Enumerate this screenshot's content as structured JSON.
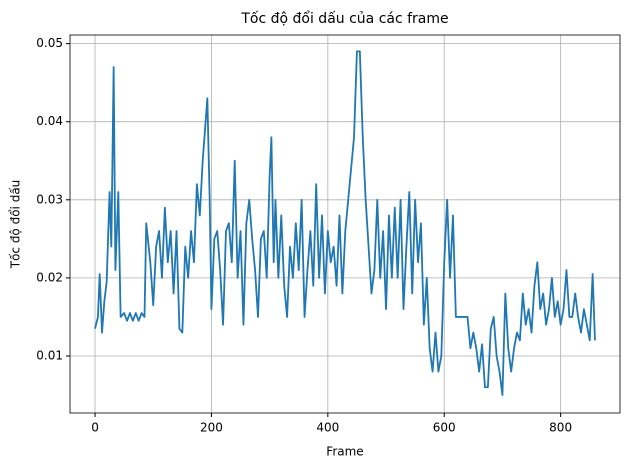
{
  "chart_data": {
    "type": "line",
    "title": "Tốc độ đổi dấu của các frame",
    "x_label": "Frame",
    "y_label": "Tốc độ đổi dấu",
    "x": [
      0,
      5,
      8,
      12,
      16,
      20,
      25,
      28,
      32,
      35,
      40,
      44,
      50,
      55,
      60,
      65,
      70,
      75,
      80,
      85,
      88,
      95,
      100,
      105,
      110,
      115,
      120,
      125,
      130,
      135,
      140,
      145,
      150,
      155,
      160,
      165,
      170,
      175,
      180,
      185,
      190,
      193,
      197,
      200,
      205,
      210,
      215,
      220,
      225,
      230,
      235,
      240,
      245,
      250,
      255,
      260,
      265,
      270,
      275,
      280,
      285,
      290,
      295,
      300,
      303,
      307,
      310,
      315,
      320,
      325,
      330,
      335,
      340,
      345,
      350,
      355,
      360,
      365,
      370,
      375,
      380,
      385,
      390,
      395,
      400,
      405,
      410,
      415,
      420,
      425,
      430,
      435,
      440,
      445,
      450,
      455,
      460,
      465,
      470,
      475,
      480,
      485,
      490,
      495,
      500,
      505,
      510,
      515,
      520,
      525,
      530,
      535,
      540,
      545,
      550,
      555,
      560,
      565,
      570,
      575,
      580,
      585,
      590,
      595,
      600,
      605,
      610,
      615,
      620,
      625,
      630,
      635,
      640,
      645,
      650,
      655,
      660,
      665,
      670,
      675,
      680,
      685,
      690,
      695,
      700,
      705,
      710,
      715,
      720,
      725,
      730,
      735,
      740,
      745,
      750,
      755,
      760,
      765,
      770,
      775,
      780,
      785,
      790,
      795,
      800,
      805,
      810,
      815,
      820,
      825,
      830,
      835,
      840,
      845,
      850,
      855,
      859
    ],
    "series": [
      {
        "color": "#1f77b4",
        "values": [
          0.0135,
          0.015,
          0.0205,
          0.013,
          0.017,
          0.0195,
          0.031,
          0.024,
          0.047,
          0.021,
          0.031,
          0.015,
          0.0155,
          0.0145,
          0.0155,
          0.0145,
          0.0155,
          0.0145,
          0.0155,
          0.015,
          0.027,
          0.022,
          0.0165,
          0.024,
          0.026,
          0.02,
          0.029,
          0.022,
          0.026,
          0.018,
          0.026,
          0.0135,
          0.013,
          0.024,
          0.02,
          0.026,
          0.022,
          0.032,
          0.028,
          0.035,
          0.04,
          0.043,
          0.03,
          0.016,
          0.025,
          0.026,
          0.021,
          0.014,
          0.026,
          0.027,
          0.022,
          0.035,
          0.02,
          0.026,
          0.014,
          0.027,
          0.03,
          0.025,
          0.021,
          0.015,
          0.025,
          0.026,
          0.02,
          0.033,
          0.038,
          0.022,
          0.03,
          0.02,
          0.028,
          0.019,
          0.015,
          0.024,
          0.02,
          0.027,
          0.021,
          0.03,
          0.015,
          0.021,
          0.026,
          0.019,
          0.032,
          0.02,
          0.028,
          0.018,
          0.026,
          0.022,
          0.024,
          0.019,
          0.028,
          0.018,
          0.026,
          0.03,
          0.034,
          0.038,
          0.049,
          0.049,
          0.038,
          0.03,
          0.024,
          0.018,
          0.021,
          0.03,
          0.02,
          0.026,
          0.016,
          0.028,
          0.02,
          0.029,
          0.02,
          0.03,
          0.016,
          0.024,
          0.031,
          0.018,
          0.03,
          0.022,
          0.027,
          0.014,
          0.02,
          0.011,
          0.008,
          0.013,
          0.008,
          0.01,
          0.022,
          0.03,
          0.02,
          0.028,
          0.015,
          0.015,
          0.015,
          0.015,
          0.015,
          0.011,
          0.013,
          0.011,
          0.008,
          0.0115,
          0.006,
          0.006,
          0.0135,
          0.015,
          0.01,
          0.008,
          0.005,
          0.018,
          0.011,
          0.008,
          0.011,
          0.013,
          0.012,
          0.018,
          0.014,
          0.016,
          0.013,
          0.019,
          0.022,
          0.016,
          0.018,
          0.014,
          0.016,
          0.02,
          0.015,
          0.017,
          0.014,
          0.016,
          0.021,
          0.015,
          0.015,
          0.018,
          0.015,
          0.013,
          0.016,
          0.014,
          0.012,
          0.0205,
          0.012
        ]
      }
    ],
    "xlim": [
      -43,
      902
    ],
    "ylim": [
      0.0027,
      0.0511
    ],
    "xticks": [
      0,
      200,
      400,
      600,
      800
    ],
    "yticks": [
      0.01,
      0.02,
      0.03,
      0.04,
      0.05
    ],
    "grid": true
  }
}
